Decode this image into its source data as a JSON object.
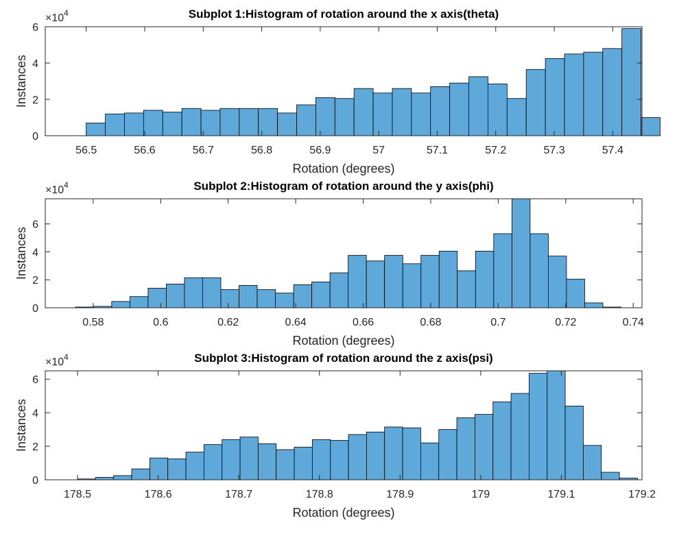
{
  "figure": {
    "background": "#ffffff",
    "bar_color": "#5ea8da",
    "edge_color": "#000000"
  },
  "chart_data": [
    {
      "type": "bar",
      "title": "Subplot 1:Histogram of rotation around the x axis(theta)",
      "xlabel": "Rotation (degrees)",
      "ylabel": "Instances",
      "multiplier": {
        "base": "×10",
        "exp": "4"
      },
      "xlim": [
        56.43,
        57.45
      ],
      "ylim": [
        0,
        6
      ],
      "xticks": [
        56.5,
        56.6,
        56.7,
        56.8,
        56.9,
        57.0,
        57.1,
        57.2,
        57.3,
        57.4
      ],
      "xtick_labels": [
        "56.5",
        "56.6",
        "56.7",
        "56.8",
        "56.9",
        "57",
        "57.1",
        "57.2",
        "57.3",
        "57.4"
      ],
      "yticks": [
        0,
        2,
        4,
        6
      ],
      "ytick_labels": [
        "0",
        "2",
        "4",
        "6"
      ],
      "bin_start": 56.5,
      "bin_width": 0.0327,
      "values": [
        0.7,
        1.2,
        1.25,
        1.4,
        1.3,
        1.5,
        1.4,
        1.5,
        1.5,
        1.5,
        1.25,
        1.7,
        2.1,
        2.05,
        2.6,
        2.35,
        2.6,
        2.35,
        2.7,
        2.9,
        3.25,
        2.85,
        2.05,
        3.65,
        4.25,
        4.5,
        4.6,
        4.8,
        5.9,
        1.0
      ],
      "grid": false
    },
    {
      "type": "bar",
      "title": "Subplot 2:Histogram of rotation around the y axis(phi)",
      "xlabel": "Rotation (degrees)",
      "ylabel": "Instances",
      "multiplier": {
        "base": "×10",
        "exp": "4"
      },
      "xlim": [
        0.5658,
        0.7426
      ],
      "ylim": [
        0,
        7.8
      ],
      "xticks": [
        0.58,
        0.6,
        0.62,
        0.64,
        0.66,
        0.68,
        0.7,
        0.72,
        0.74
      ],
      "xtick_labels": [
        "0.58",
        "0.6",
        "0.62",
        "0.64",
        "0.66",
        "0.68",
        "0.7",
        "0.72",
        "0.74"
      ],
      "yticks": [
        0,
        2,
        4,
        6
      ],
      "ytick_labels": [
        "0",
        "2",
        "4",
        "6"
      ],
      "bin_start": 0.5747,
      "bin_width": 0.00539,
      "values": [
        0.05,
        0.1,
        0.45,
        0.8,
        1.4,
        1.7,
        2.15,
        2.15,
        1.3,
        1.6,
        1.3,
        1.05,
        1.65,
        1.85,
        2.5,
        3.75,
        3.35,
        3.75,
        3.15,
        3.75,
        4.05,
        2.65,
        4.05,
        5.3,
        7.8,
        5.3,
        3.7,
        2.05,
        0.35,
        0.05
      ],
      "grid": false
    },
    {
      "type": "bar",
      "title": "Subplot 3:Histogram of rotation around the z axis(psi)",
      "xlabel": "Rotation (degrees)",
      "ylabel": "Instances",
      "multiplier": {
        "base": "×10",
        "exp": "4"
      },
      "xlim": [
        178.46,
        179.2
      ],
      "ylim": [
        0,
        6.5
      ],
      "xticks": [
        178.5,
        178.6,
        178.7,
        178.8,
        178.9,
        179.0,
        179.1,
        179.2
      ],
      "xtick_labels": [
        "178.5",
        "178.6",
        "178.7",
        "178.8",
        "178.9",
        "179",
        "179.1",
        "179.2"
      ],
      "yticks": [
        0,
        2,
        4,
        6
      ],
      "ytick_labels": [
        "0",
        "2",
        "4",
        "6"
      ],
      "bin_start": 178.5,
      "bin_width": 0.0224,
      "values": [
        0.05,
        0.15,
        0.25,
        0.65,
        1.3,
        1.25,
        1.65,
        2.1,
        2.4,
        2.55,
        2.15,
        1.8,
        1.95,
        2.4,
        2.35,
        2.7,
        2.85,
        3.15,
        3.1,
        2.2,
        3.0,
        3.7,
        3.9,
        4.65,
        5.15,
        6.35,
        6.5,
        4.4,
        2.05,
        0.45,
        0.1
      ],
      "grid": false
    }
  ]
}
